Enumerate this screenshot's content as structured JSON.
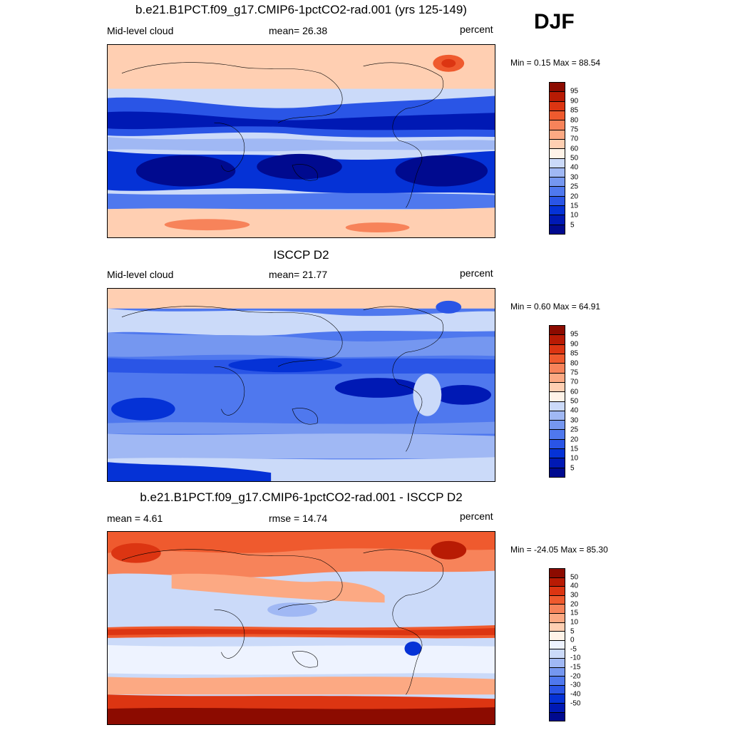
{
  "season": "DJF",
  "panels": [
    {
      "title": "b.e21.B1PCT.f09_g17.CMIP6-1pctCO2-rad.001 (yrs 125-149)",
      "left_label": "Mid-level cloud",
      "center_label": "mean=  26.38",
      "right_label": "percent",
      "minmax": "Min =   0.15 Max =  88.54",
      "colorbar": {
        "colors": [
          "#000a8f",
          "#0019b4",
          "#0532d6",
          "#2a55e6",
          "#4f78ee",
          "#7597f0",
          "#a0b8f4",
          "#cbdaf9",
          "#fff3e8",
          "#ffcfb2",
          "#fca983",
          "#f7835a",
          "#ef5a2e",
          "#dc3512",
          "#b81b04",
          "#8c0b00"
        ],
        "labels": [
          "95",
          "90",
          "85",
          "80",
          "75",
          "70",
          "60",
          "50",
          "40",
          "30",
          "25",
          "20",
          "15",
          "10",
          "5"
        ]
      }
    },
    {
      "title": "ISCCP D2",
      "left_label": "Mid-level cloud",
      "center_label": "mean=  21.77",
      "right_label": "percent",
      "minmax": "Min =   0.60 Max =  64.91",
      "colorbar": {
        "colors": [
          "#000a8f",
          "#0019b4",
          "#0532d6",
          "#2a55e6",
          "#4f78ee",
          "#7597f0",
          "#a0b8f4",
          "#cbdaf9",
          "#fff3e8",
          "#ffcfb2",
          "#fca983",
          "#f7835a",
          "#ef5a2e",
          "#dc3512",
          "#b81b04",
          "#8c0b00"
        ],
        "labels": [
          "95",
          "90",
          "85",
          "80",
          "75",
          "70",
          "60",
          "50",
          "40",
          "30",
          "25",
          "20",
          "15",
          "10",
          "5"
        ]
      }
    },
    {
      "title": "b.e21.B1PCT.f09_g17.CMIP6-1pctCO2-rad.001 - ISCCP D2",
      "left_label": "mean =   4.61",
      "center_label": "rmse =  14.74",
      "right_label": "percent",
      "minmax": "Min = -24.05 Max =  85.30",
      "colorbar": {
        "colors": [
          "#000a8f",
          "#0019b4",
          "#0532d6",
          "#2a55e6",
          "#4f78ee",
          "#7597f0",
          "#a0b8f4",
          "#cbdaf9",
          "#eef3ff",
          "#fff3e8",
          "#ffcfb2",
          "#fca983",
          "#f7835a",
          "#ef5a2e",
          "#dc3512",
          "#b81b04",
          "#8c0b00"
        ],
        "labels": [
          "50",
          "40",
          "30",
          "20",
          "15",
          "10",
          "5",
          "0",
          "-5",
          "-10",
          "-15",
          "-20",
          "-30",
          "-40",
          "-50"
        ]
      }
    }
  ]
}
